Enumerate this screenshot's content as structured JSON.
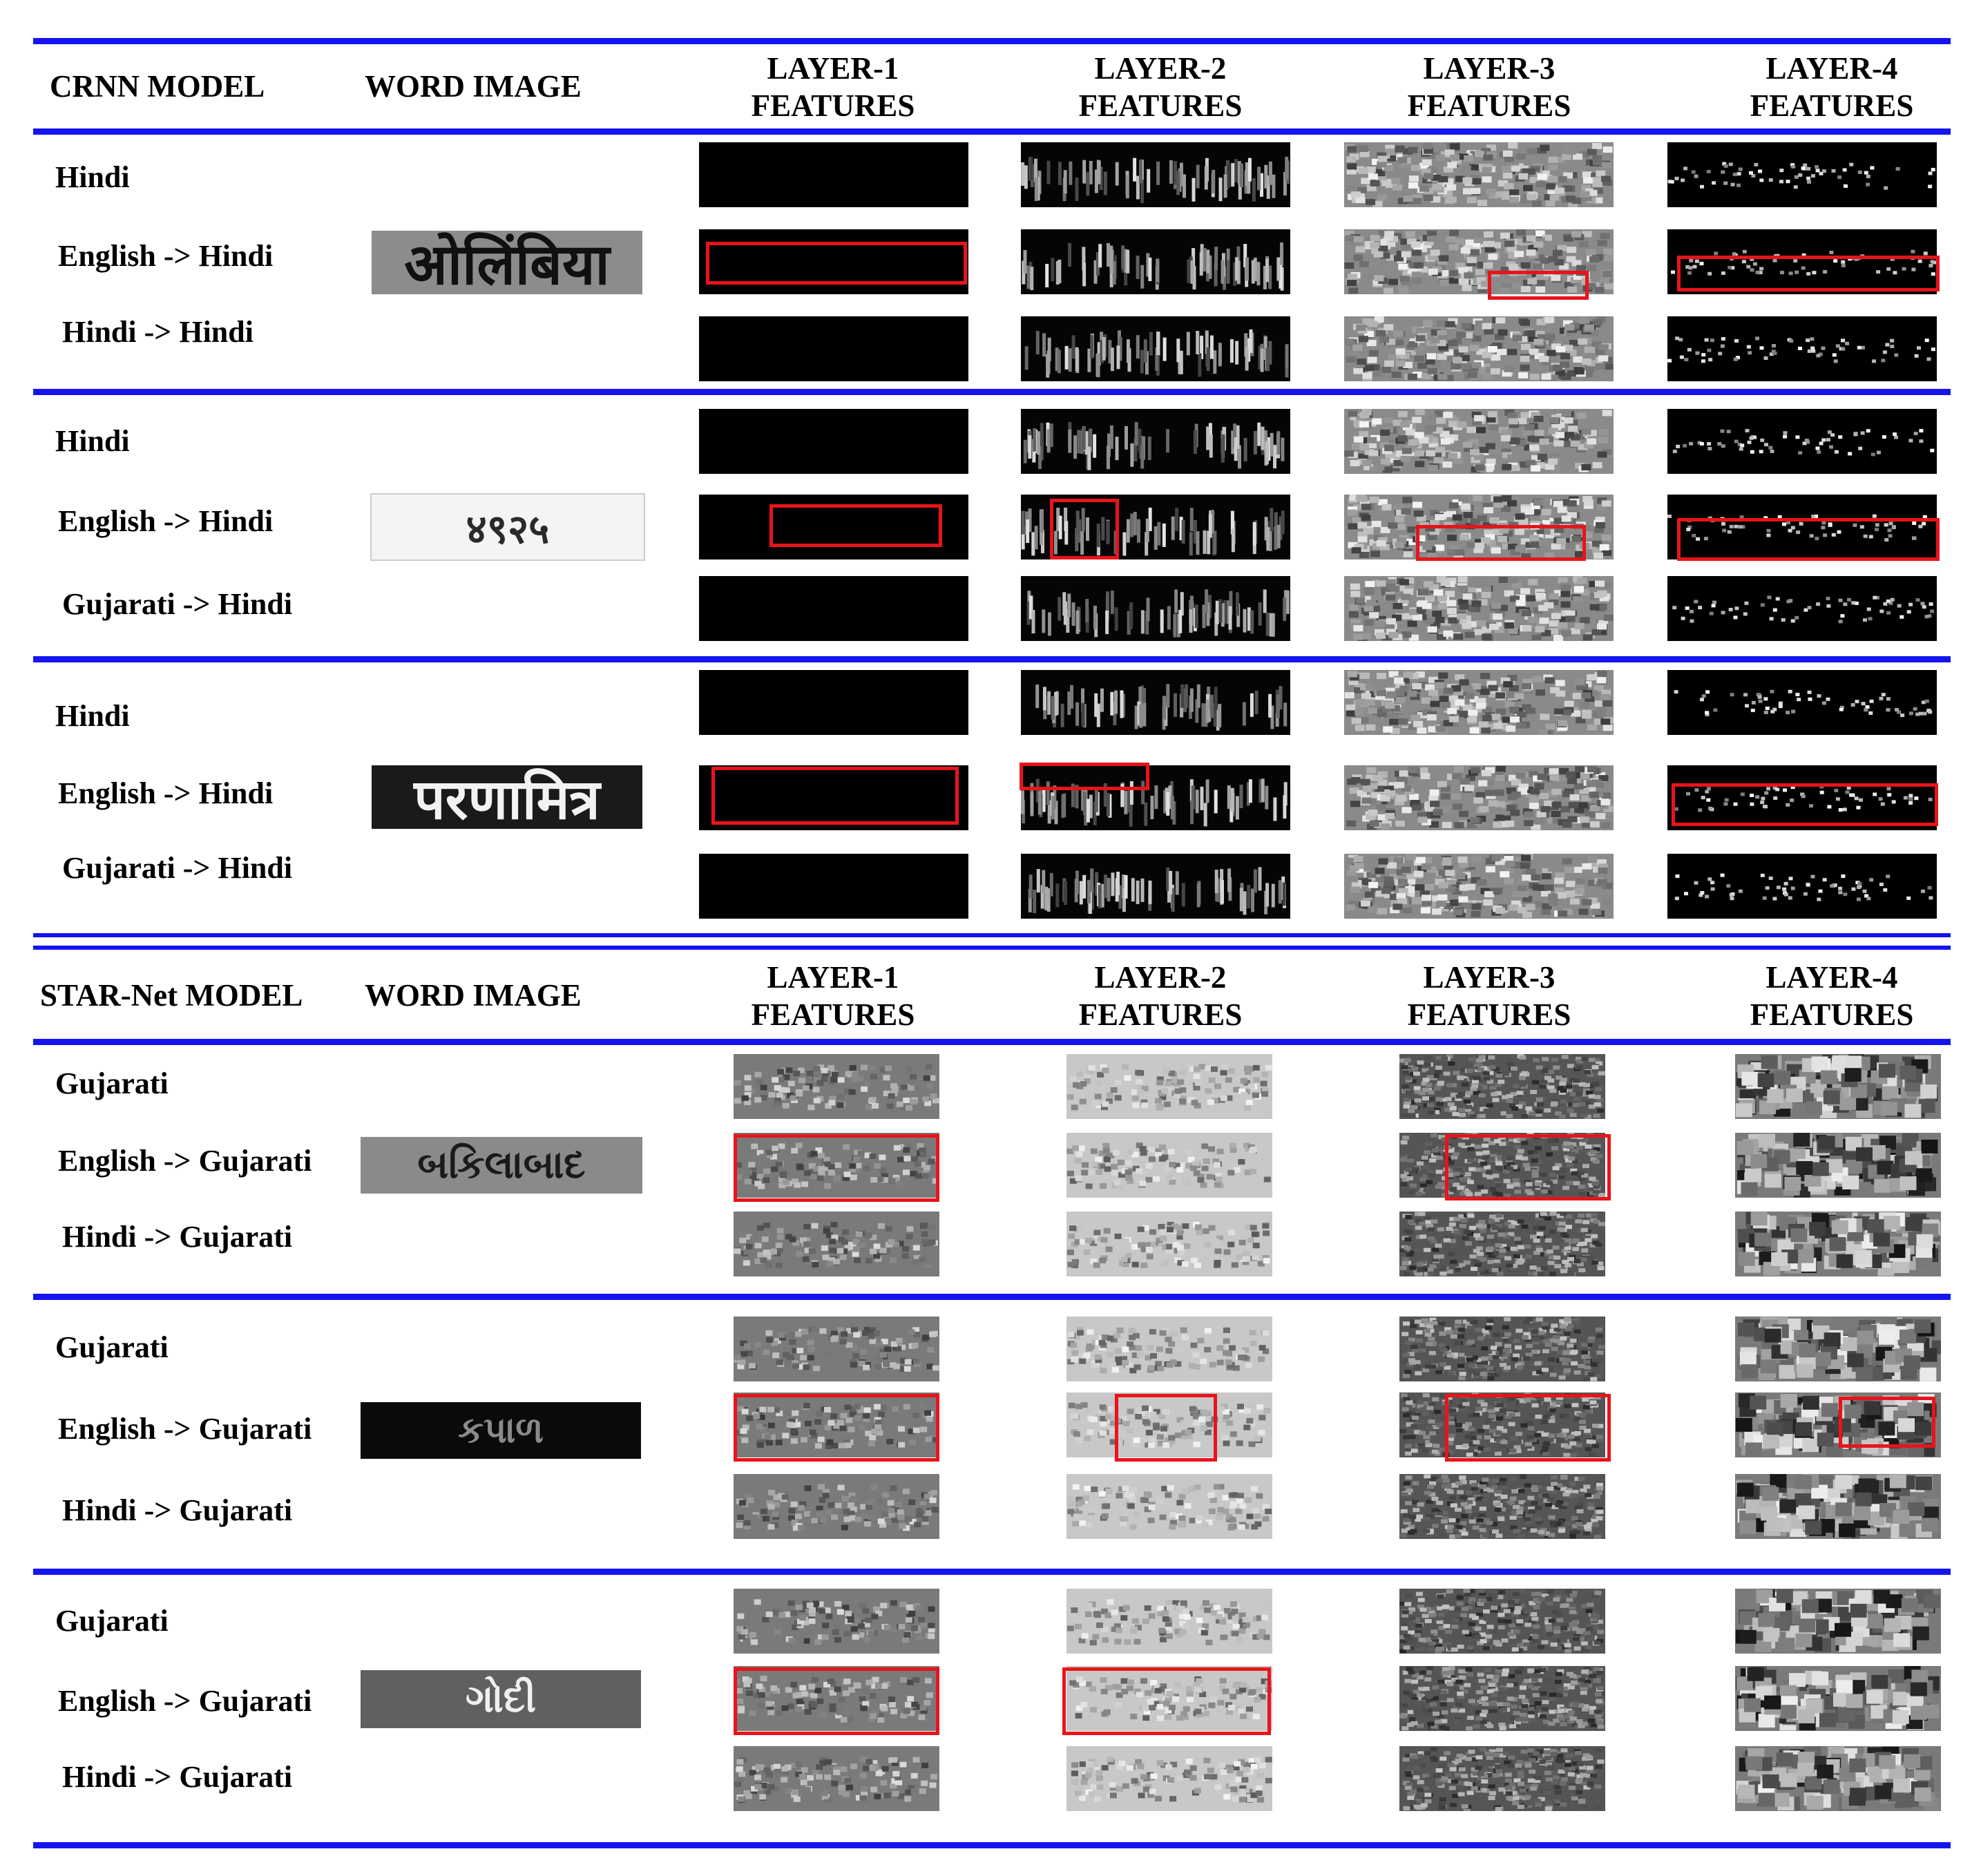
{
  "crnn": {
    "header": {
      "model": "CRNN MODEL",
      "word_image": "WORD IMAGE",
      "layers": [
        [
          "LAYER-1",
          "FEATURES"
        ],
        [
          "LAYER-2",
          "FEATURES"
        ],
        [
          "LAYER-3",
          "FEATURES"
        ],
        [
          "LAYER-4",
          "FEATURES"
        ]
      ]
    },
    "groups": [
      {
        "labels": [
          "Hindi",
          "English -> Hindi",
          "Hindi -> Hindi"
        ],
        "word": "ओलिंबिया"
      },
      {
        "labels": [
          "Hindi",
          "English -> Hindi",
          "Gujarati -> Hindi"
        ],
        "word": "४९२५"
      },
      {
        "labels": [
          "Hindi",
          "English -> Hindi",
          "Gujarati -> Hindi"
        ],
        "word": "परणामित्र"
      }
    ]
  },
  "starnet": {
    "header": {
      "model": "STAR-Net MODEL",
      "word_image": "WORD IMAGE",
      "layers": [
        [
          "LAYER-1",
          "FEATURES"
        ],
        [
          "LAYER-2",
          "FEATURES"
        ],
        [
          "LAYER-3",
          "FEATURES"
        ],
        [
          "LAYER-4",
          "FEATURES"
        ]
      ]
    },
    "groups": [
      {
        "labels": [
          "Gujarati",
          "English -> Gujarati",
          "Hindi -> Gujarati"
        ],
        "word": "બકિલાબાદ"
      },
      {
        "labels": [
          "Gujarati",
          "English -> Gujarati",
          "Hindi -> Gujarati"
        ],
        "word": "કપાળ"
      },
      {
        "labels": [
          "Gujarati",
          "English -> Gujarati",
          "Hindi -> Gujarati"
        ],
        "word": "ગોદી"
      }
    ]
  },
  "colors": {
    "rule": "#1414f0",
    "highlight": "#e8141a"
  }
}
